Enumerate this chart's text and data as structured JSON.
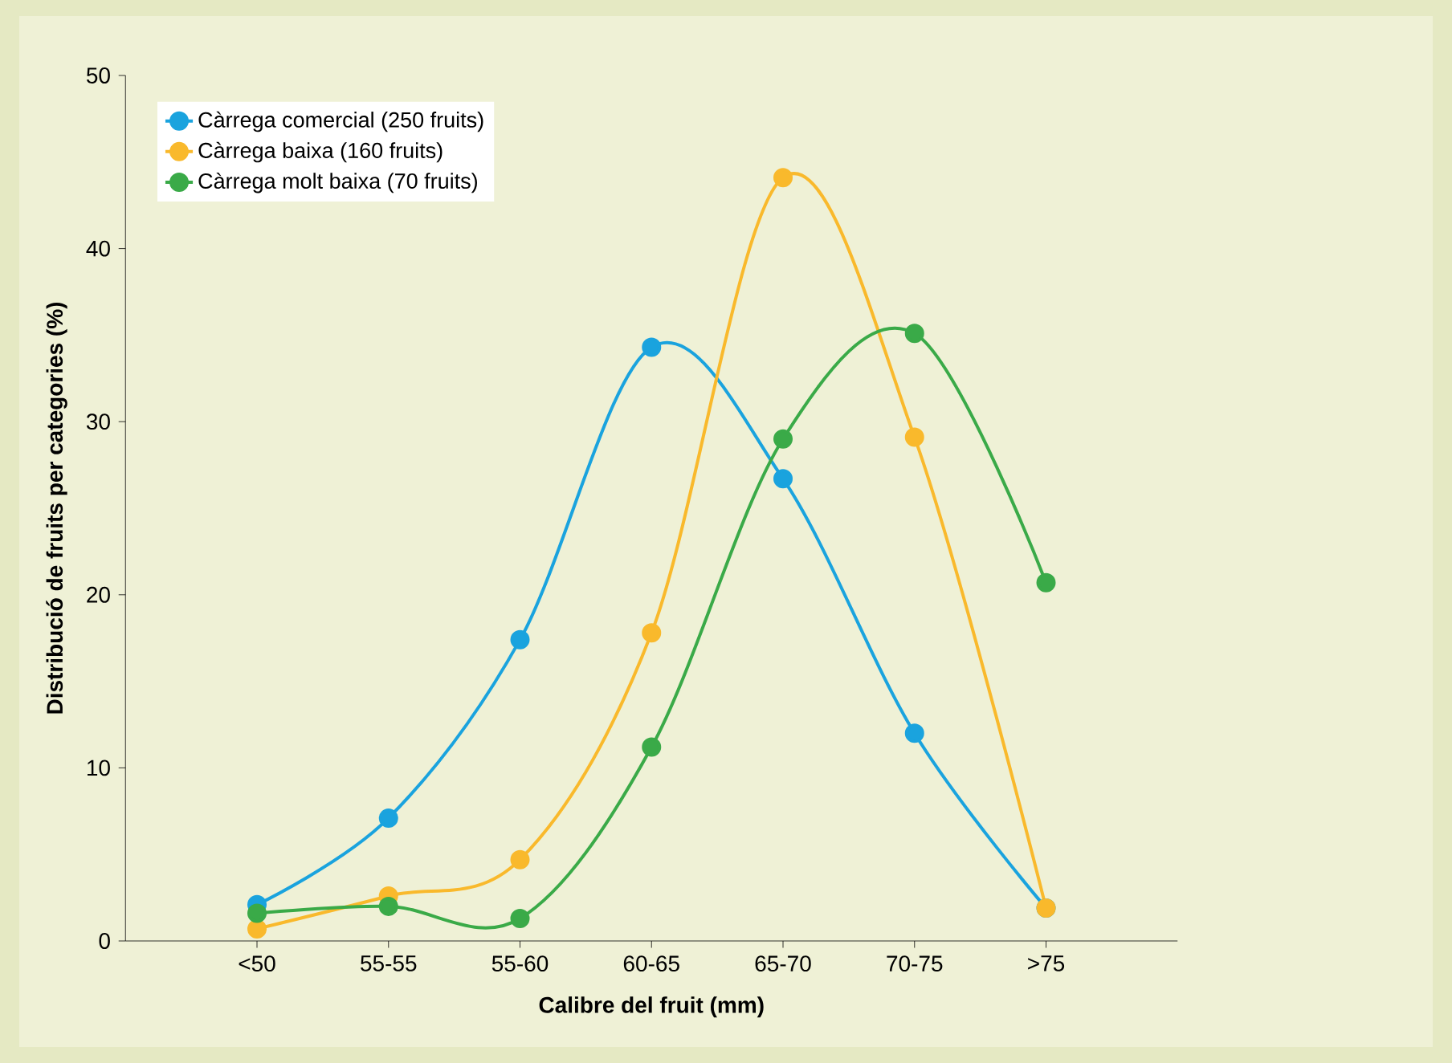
{
  "chart_data": {
    "type": "line",
    "xlabel": "Calibre del fruit (mm)",
    "ylabel": "Distribució de fruits per categories (%)",
    "categories": [
      "<50",
      "55-55",
      "55-60",
      "60-65",
      "65-70",
      "70-75",
      ">75"
    ],
    "series": [
      {
        "name": "Càrrega comercial (250 fruits)",
        "color": "#1aa3de",
        "values": [
          2.1,
          7.1,
          17.4,
          34.3,
          26.7,
          12.0,
          1.9
        ]
      },
      {
        "name": "Càrrega baixa (160 fruits)",
        "color": "#f9b92c",
        "values": [
          0.7,
          2.6,
          4.7,
          17.8,
          44.1,
          29.1,
          1.9
        ]
      },
      {
        "name": "Càrrega molt baixa (70 fruits)",
        "color": "#3aaa48",
        "values": [
          1.6,
          2.0,
          1.3,
          11.2,
          29.0,
          35.1,
          20.7
        ]
      }
    ],
    "ylim": [
      0,
      50
    ],
    "yticks": [
      0,
      10,
      20,
      30,
      40,
      50
    ],
    "grid": false,
    "legend": "top left",
    "marker": "circle",
    "line_style": "solid"
  }
}
